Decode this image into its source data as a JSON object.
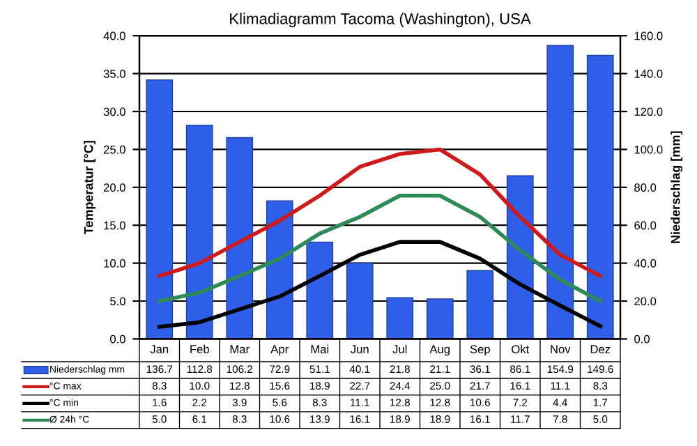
{
  "chart_data": {
    "type": "bar",
    "title": "Klimadiagramm Tacoma (Washington), USA",
    "ylabel": "Temperatur [°C]",
    "y2label": "Niederschlag [mm]",
    "categories": [
      "Jan",
      "Feb",
      "Mar",
      "Apr",
      "Mai",
      "Jun",
      "Jul",
      "Aug",
      "Sep",
      "Okt",
      "Nov",
      "Dez"
    ],
    "series": [
      {
        "name": "Niederschlag mm",
        "axis": "y2",
        "color": "#2f5fe8",
        "values": [
          136.7,
          112.8,
          106.2,
          72.9,
          51.1,
          40.1,
          21.8,
          21.1,
          36.1,
          86.1,
          154.9,
          149.6
        ],
        "value_labels": [
          "136.7",
          "112.8",
          "106.2",
          "72.9",
          "51.1",
          "40.1",
          "21.8",
          "21.1",
          "36.1",
          "86.1",
          "154.9",
          "149.6"
        ]
      },
      {
        "name": "°C max",
        "type": "line",
        "color": "#d01a1a",
        "values": [
          8.3,
          10.0,
          12.8,
          15.6,
          18.9,
          22.7,
          24.4,
          25.0,
          21.7,
          16.1,
          11.1,
          8.3
        ],
        "value_labels": [
          "8.3",
          "10.0",
          "12.8",
          "15.6",
          "18.9",
          "22.7",
          "24.4",
          "25.0",
          "21.7",
          "16.1",
          "11.1",
          "8.3"
        ]
      },
      {
        "name": "°C min",
        "type": "line",
        "color": "#000000",
        "values": [
          1.6,
          2.2,
          3.9,
          5.6,
          8.3,
          11.1,
          12.8,
          12.8,
          10.6,
          7.2,
          4.4,
          1.7
        ],
        "value_labels": [
          "1.6",
          "2.2",
          "3.9",
          "5.6",
          "8.3",
          "11.1",
          "12.8",
          "12.8",
          "10.6",
          "7.2",
          "4.4",
          "1.7"
        ]
      },
      {
        "name": "Ø 24h °C",
        "type": "line",
        "color": "#2e8b57",
        "values": [
          5.0,
          6.1,
          8.3,
          10.6,
          13.9,
          16.1,
          18.9,
          18.9,
          16.1,
          11.7,
          7.8,
          5.0
        ],
        "value_labels": [
          "5.0",
          "6.1",
          "8.3",
          "10.6",
          "13.9",
          "16.1",
          "18.9",
          "18.9",
          "16.1",
          "11.7",
          "7.8",
          "5.0"
        ]
      }
    ],
    "ylim": [
      0,
      40
    ],
    "yticks": [
      {
        "value": 0,
        "label": "0.0"
      },
      {
        "value": 5,
        "label": "5.0"
      },
      {
        "value": 10,
        "label": "10.0"
      },
      {
        "value": 15,
        "label": "15.0"
      },
      {
        "value": 20,
        "label": "20.0"
      },
      {
        "value": 25,
        "label": "25.0"
      },
      {
        "value": 30,
        "label": "30.0"
      },
      {
        "value": 35,
        "label": "35.0"
      },
      {
        "value": 40,
        "label": "40.0"
      }
    ],
    "y2lim": [
      0,
      160
    ],
    "y2ticks": [
      {
        "value": 0,
        "label": "0.0"
      },
      {
        "value": 20,
        "label": "20.0"
      },
      {
        "value": 40,
        "label": "40.0"
      },
      {
        "value": 60,
        "label": "60.0"
      },
      {
        "value": 80,
        "label": "80.0"
      },
      {
        "value": 100,
        "label": "100.0"
      },
      {
        "value": 120,
        "label": "120.0"
      },
      {
        "value": 140,
        "label": "140.0"
      },
      {
        "value": 160,
        "label": "160.0"
      }
    ],
    "grid": "y",
    "line_style": "solid",
    "marker": "none",
    "legend": "bottom"
  }
}
